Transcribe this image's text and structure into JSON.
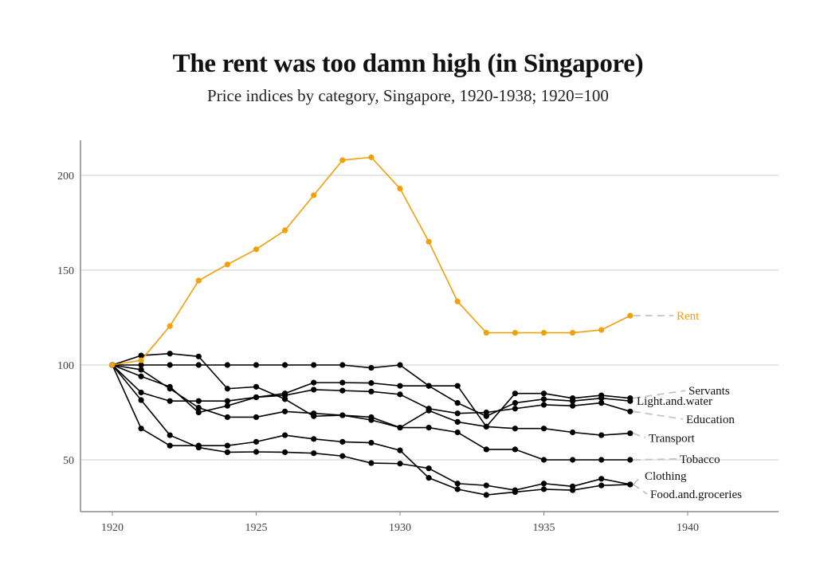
{
  "chart_data": {
    "type": "line",
    "title": "The rent was too damn high (in Singapore)",
    "subtitle": "Price indices by category, Singapore, 1920-1938; 1920=100",
    "xlabel": "",
    "ylabel": "",
    "xlim": [
      1919,
      1943
    ],
    "ylim": [
      25,
      218
    ],
    "x_ticks": [
      1920,
      1925,
      1930,
      1935,
      1940
    ],
    "y_ticks": [
      50,
      100,
      150,
      200
    ],
    "grid": "horizontal",
    "x": [
      1920,
      1921,
      1922,
      1923,
      1924,
      1925,
      1926,
      1927,
      1928,
      1929,
      1930,
      1931,
      1932,
      1933,
      1934,
      1935,
      1936,
      1937,
      1938
    ],
    "series": [
      {
        "name": "Rent",
        "color": "#F0A00A",
        "label_color": "#F0A00A",
        "values": [
          100,
          102.5,
          120.5,
          144.5,
          153,
          161,
          171,
          189.5,
          208,
          209.5,
          193,
          165,
          133.5,
          117,
          117,
          117,
          117,
          118.5,
          126
        ]
      },
      {
        "name": "Servants",
        "color": "#000000",
        "label_color": "#111111",
        "values": [
          100,
          85.5,
          81,
          81,
          81,
          83,
          85,
          90.7,
          90.7,
          90.5,
          89,
          89,
          89,
          67.5,
          85,
          85,
          82.5,
          84,
          82.5
        ]
      },
      {
        "name": "Light.and.water",
        "color": "#000000",
        "label_color": "#111111",
        "values": [
          100,
          100,
          100,
          100,
          100,
          100,
          100,
          100,
          100,
          98.5,
          100,
          89,
          80,
          73,
          80,
          82,
          81,
          82.5,
          81
        ]
      },
      {
        "name": "Education",
        "color": "#000000",
        "label_color": "#111111",
        "values": [
          100,
          94,
          88.5,
          75,
          78.5,
          83,
          84,
          87,
          86.5,
          86,
          84.5,
          77,
          74.5,
          75,
          77,
          79,
          78.5,
          80,
          75.5
        ]
      },
      {
        "name": "Transport",
        "color": "#000000",
        "label_color": "#111111",
        "values": [
          100,
          105,
          106,
          104.5,
          87.5,
          88.5,
          82,
          73,
          73.5,
          71,
          67,
          76,
          70,
          67.5,
          66.5,
          66.5,
          64.5,
          63,
          64
        ]
      },
      {
        "name": "Tobacco",
        "color": "#000000",
        "label_color": "#111111",
        "values": [
          100,
          97.5,
          87.5,
          77.5,
          72.5,
          72.5,
          75.5,
          74.5,
          73.5,
          72.5,
          67,
          67,
          64.5,
          55.5,
          55.5,
          50,
          50,
          50,
          50
        ]
      },
      {
        "name": "Clothing",
        "color": "#000000",
        "label_color": "#111111",
        "values": [
          100,
          81.5,
          63,
          56.5,
          54,
          54.2,
          54,
          53.5,
          52,
          48.3,
          48,
          45.5,
          37.5,
          36.5,
          34,
          37.5,
          36,
          40,
          37
        ]
      },
      {
        "name": "Food.and.groceries",
        "color": "#000000",
        "label_color": "#111111",
        "values": [
          100,
          66.5,
          57.5,
          57.5,
          57.5,
          59.5,
          63,
          61,
          59.5,
          59,
          55,
          40.5,
          34.5,
          31.5,
          33,
          34.5,
          34,
          36.5,
          37
        ]
      }
    ],
    "labels": [
      {
        "series": "Rent",
        "text": "Rent",
        "label_value": 126
      },
      {
        "series": "Servants",
        "text": "Servants",
        "label_value": 86.5
      },
      {
        "series": "Light.and.water",
        "text": "Light.and.water",
        "label_value": 81
      },
      {
        "series": "Education",
        "text": "Education",
        "label_value": 71.5
      },
      {
        "series": "Transport",
        "text": "Transport",
        "label_value": 61.5
      },
      {
        "series": "Tobacco",
        "text": "Tobacco",
        "label_value": 50.5
      },
      {
        "series": "Clothing",
        "text": "Clothing",
        "label_value": 41.5
      },
      {
        "series": "Food.and.groceries",
        "text": "Food.and.groceries",
        "label_value": 32
      }
    ]
  }
}
